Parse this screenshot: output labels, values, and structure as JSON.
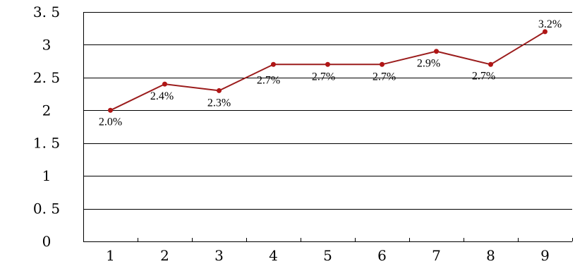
{
  "chart_data": {
    "type": "line",
    "x": [
      1,
      2,
      3,
      4,
      5,
      6,
      7,
      8,
      9
    ],
    "values": [
      2.0,
      2.4,
      2.3,
      2.7,
      2.7,
      2.7,
      2.9,
      2.7,
      3.2
    ],
    "data_labels": [
      "2.0%",
      "2.4%",
      "2.3%",
      "2.7%",
      "2.7%",
      "2.7%",
      "2.9%",
      "2.7%",
      "3.2%"
    ],
    "y_tick_labels": [
      "0",
      "0. 5",
      "1",
      "1. 5",
      "2",
      "2. 5",
      "3",
      "3. 5"
    ],
    "y_tick_values": [
      0,
      0.5,
      1,
      1.5,
      2,
      2.5,
      3,
      3.5
    ],
    "x_tick_labels": [
      "1",
      "2",
      "3",
      "4",
      "5",
      "6",
      "7",
      "8",
      "9"
    ],
    "ylim": [
      0,
      3.5
    ],
    "grid": true,
    "legend": "none",
    "colors": {
      "line": "#9b1c1c",
      "marker": "#b01515",
      "grid": "#000000",
      "text": "#000000"
    }
  }
}
